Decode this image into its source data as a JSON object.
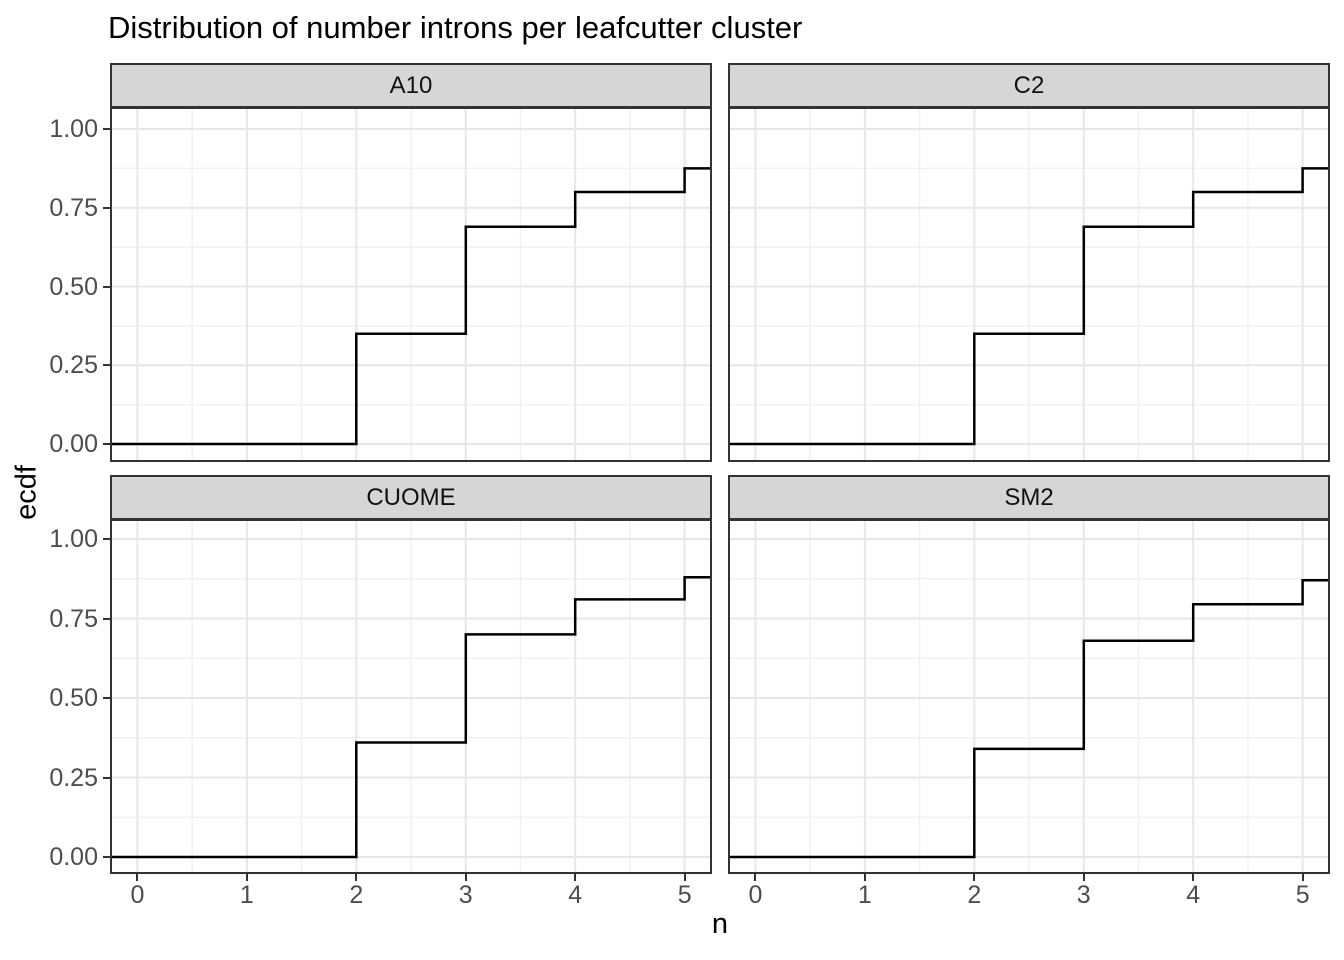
{
  "title": "Distribution of number introns per leafcutter cluster",
  "axes": {
    "x_title": "n",
    "y_title": "ecdf"
  },
  "chart_data": {
    "type": "line",
    "subtype": "ecdf-step",
    "title": "Distribution of number introns per leafcutter cluster",
    "xlabel": "n",
    "ylabel": "ecdf",
    "xlim": [
      -0.25,
      5.25
    ],
    "ylim": [
      -0.057,
      1.07
    ],
    "grid": true,
    "legend_position": "none",
    "x_breaks": [
      0,
      1,
      2,
      3,
      4,
      5
    ],
    "x_tick_labels": [
      "0",
      "1",
      "2",
      "3",
      "4",
      "5"
    ],
    "x_minor_breaks": [
      0.5,
      1.5,
      2.5,
      3.5,
      4.5
    ],
    "y_breaks": [
      0,
      0.25,
      0.5,
      0.75,
      1.0
    ],
    "y_tick_labels": [
      "0.00",
      "0.25",
      "0.50",
      "0.75",
      "1.00"
    ],
    "y_minor_breaks": [
      0.125,
      0.375,
      0.625,
      0.875
    ],
    "facets": [
      {
        "label": "A10",
        "step_x": [
          2,
          3,
          4,
          5
        ],
        "ecdf_after_step": [
          0.35,
          0.69,
          0.8,
          0.875
        ]
      },
      {
        "label": "C2",
        "step_x": [
          2,
          3,
          4,
          5
        ],
        "ecdf_after_step": [
          0.35,
          0.69,
          0.8,
          0.875
        ]
      },
      {
        "label": "CUOME",
        "step_x": [
          2,
          3,
          4,
          5
        ],
        "ecdf_after_step": [
          0.36,
          0.7,
          0.81,
          0.88
        ]
      },
      {
        "label": "SM2",
        "step_x": [
          2,
          3,
          4,
          5
        ],
        "ecdf_after_step": [
          0.34,
          0.68,
          0.795,
          0.87
        ]
      }
    ],
    "colors": {
      "line": "#000000",
      "panel_background": "#ffffff",
      "panel_border": "#333333",
      "strip_fill": "#d6d6d6",
      "strip_border": "#333333",
      "grid_major": "#e7e7e7",
      "grid_minor": "#f1f1f1",
      "axis_text": "#4d4d4d",
      "tick_mark": "#333333",
      "title_text": "#000000"
    }
  }
}
